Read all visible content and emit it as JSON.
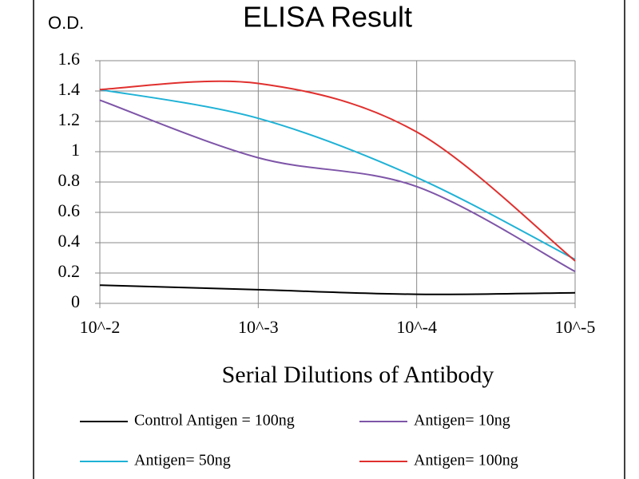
{
  "chart_data": {
    "type": "line",
    "title": "ELISA Result",
    "y_label": "O.D.",
    "x_label": "Serial Dilutions  of Antibody",
    "categories": [
      "10^-2",
      "10^-3",
      "10^-4",
      "10^-5"
    ],
    "series": [
      {
        "name": "Control Antigen = 100ng",
        "color": "#000000",
        "values": [
          0.12,
          0.09,
          0.06,
          0.07
        ]
      },
      {
        "name": "Antigen= 10ng",
        "color": "#7e55a8",
        "values": [
          1.34,
          0.96,
          0.77,
          0.21
        ]
      },
      {
        "name": "Antigen= 50ng",
        "color": "#1fb2d6",
        "values": [
          1.41,
          1.22,
          0.83,
          0.29
        ]
      },
      {
        "name": "Antigen= 100ng",
        "color": "#e0302e",
        "values": [
          1.41,
          1.45,
          1.13,
          0.28
        ]
      }
    ],
    "ylim": [
      0,
      1.6
    ],
    "yticks": [
      0,
      0.2,
      0.4,
      0.6,
      0.8,
      1,
      1.2,
      1.4,
      1.6
    ],
    "grid": true
  }
}
